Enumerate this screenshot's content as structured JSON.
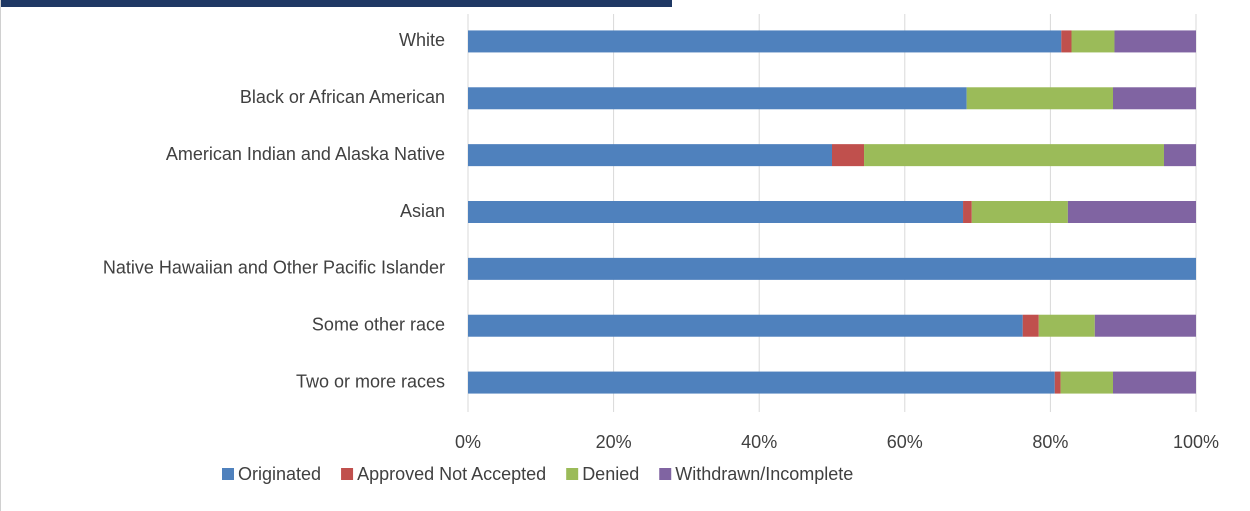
{
  "chart_data": {
    "type": "stacked-bar-horizontal",
    "categories": [
      "White",
      "Black or African American",
      "American Indian and Alaska Native",
      "Asian",
      "Native Hawaiian and Other Pacific Islander",
      "Some other race",
      "Two or more races"
    ],
    "series": [
      {
        "name": "Originated",
        "color": "#4f81bd",
        "values": [
          81.5,
          68.5,
          50.0,
          68.0,
          100,
          76.2,
          80.6
        ]
      },
      {
        "name": "Approved Not Accepted",
        "color": "#c0504d",
        "values": [
          1.4,
          0,
          4.4,
          1.2,
          0,
          2.2,
          0.8
        ]
      },
      {
        "name": "Denied",
        "color": "#9bbb59",
        "values": [
          5.9,
          20.1,
          41.2,
          13.2,
          0,
          7.7,
          7.2
        ]
      },
      {
        "name": "Withdrawn/Incomplete",
        "color": "#8064a2",
        "values": [
          11.2,
          11.4,
          4.4,
          17.6,
          0,
          13.9,
          11.4
        ]
      }
    ],
    "xlim": [
      0,
      100
    ],
    "xticks": [
      {
        "value": 0,
        "label": "0%"
      },
      {
        "value": 20,
        "label": "20%"
      },
      {
        "value": 40,
        "label": "40%"
      },
      {
        "value": 60,
        "label": "60%"
      },
      {
        "value": 80,
        "label": "80%"
      },
      {
        "value": 100,
        "label": "100%"
      }
    ],
    "grid": true,
    "legend": "bottom"
  }
}
